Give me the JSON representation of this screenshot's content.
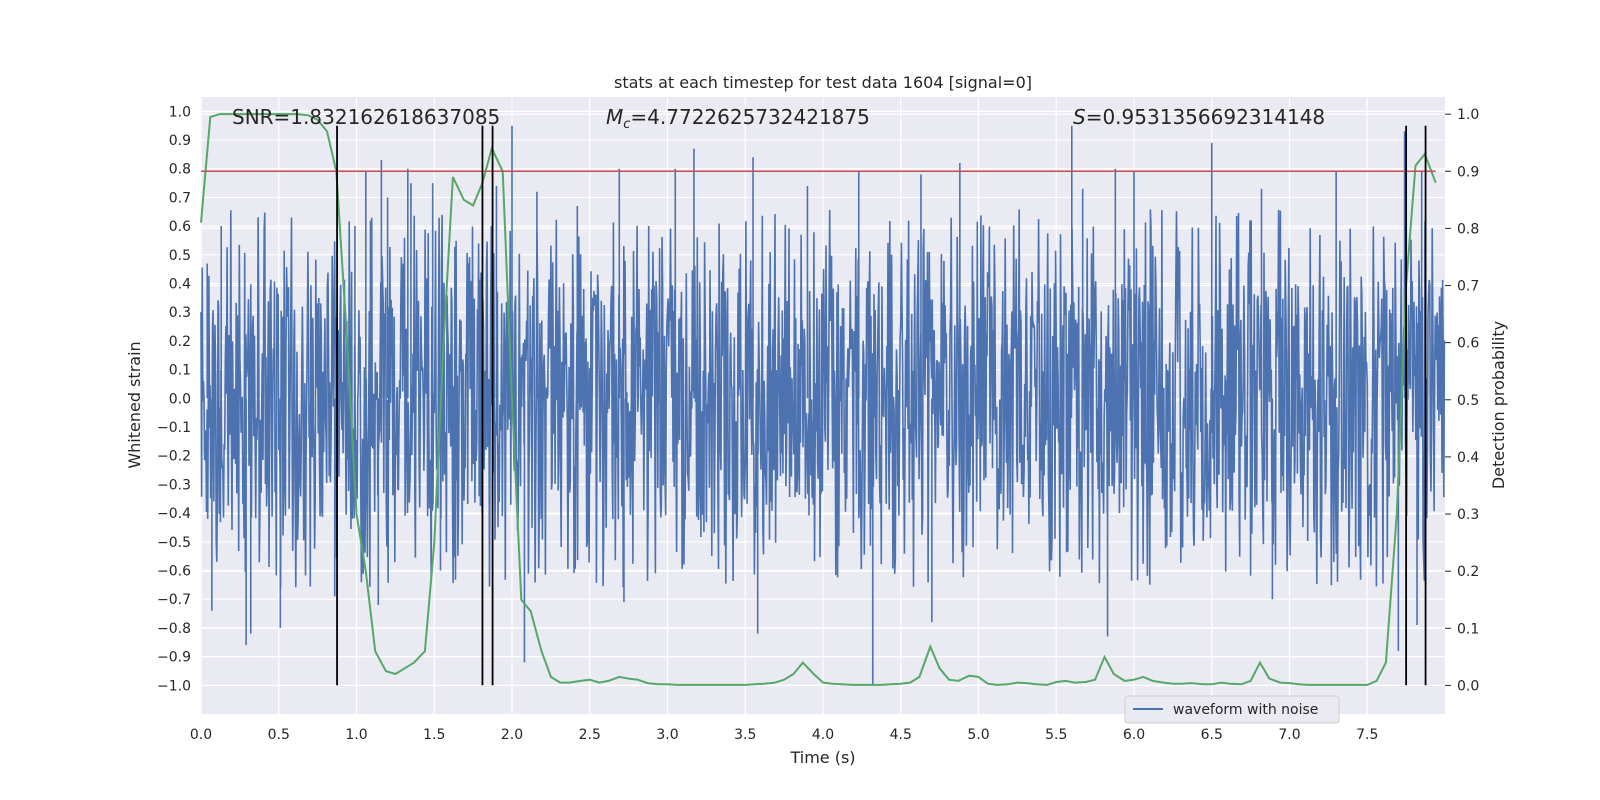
{
  "chart_data": {
    "type": "line",
    "title": "stats at each timestep for test data 1604 [signal=0]",
    "xlabel": "Time (s)",
    "ylabel": "Whitened strain",
    "y2label": "Detection probability",
    "xlim": [
      0,
      8
    ],
    "ylim": [
      -1.1,
      1.05
    ],
    "y2lim": [
      -0.05,
      1.03
    ],
    "x_ticks": [
      0.0,
      0.5,
      1.0,
      1.5,
      2.0,
      2.5,
      3.0,
      3.5,
      4.0,
      4.5,
      5.0,
      5.5,
      6.0,
      6.5,
      7.0,
      7.5
    ],
    "x_tick_labels": [
      "0.0",
      "0.5",
      "1.0",
      "1.5",
      "2.0",
      "2.5",
      "3.0",
      "3.5",
      "4.0",
      "4.5",
      "5.0",
      "5.5",
      "6.0",
      "6.5",
      "7.0",
      "7.5"
    ],
    "y_ticks": [
      1.0,
      0.9,
      0.8,
      0.7,
      0.6,
      0.5,
      0.4,
      0.3,
      0.2,
      0.1,
      0.0,
      -0.1,
      -0.2,
      -0.3,
      -0.4,
      -0.5,
      -0.6,
      -0.7,
      -0.8,
      -0.9,
      -1.0
    ],
    "y_tick_labels": [
      "1.0",
      "0.9",
      "0.8",
      "0.7",
      "0.6",
      "0.5",
      "0.4",
      "0.3",
      "0.2",
      "0.1",
      "0.0",
      "−0.1",
      "−0.2",
      "−0.3",
      "−0.4",
      "−0.5",
      "−0.6",
      "−0.7",
      "−0.8",
      "−0.9",
      "−1.0"
    ],
    "y2_ticks": [
      1.0,
      0.9,
      0.8,
      0.7,
      0.6,
      0.5,
      0.4,
      0.3,
      0.2,
      0.1,
      0.0
    ],
    "y2_tick_labels": [
      "1.0",
      "0.9",
      "0.8",
      "0.7",
      "0.6",
      "0.5",
      "0.4",
      "0.3",
      "0.2",
      "0.1",
      "0.0"
    ],
    "annotations": {
      "snr": "SNR=1.832162618637085",
      "mc_prefix": "M",
      "mc_sub": "c",
      "mc_value": "=4.7722625732421875",
      "s_prefix": "S",
      "s_value": "=0.9531356692314148"
    },
    "threshold": 0.9,
    "vlines": [
      0.875,
      1.81,
      1.875,
      7.75,
      7.875
    ],
    "vlines_y_range": [
      -1.0,
      0.95
    ],
    "waveform": {
      "name": "waveform with noise",
      "samples_per_second": 256,
      "envelope_inner": 0.42,
      "spikes": [
        [
          0.04,
          0.47
        ],
        [
          0.07,
          -0.74
        ],
        [
          0.13,
          0.6
        ],
        [
          0.29,
          -0.86
        ],
        [
          0.32,
          -0.82
        ],
        [
          0.51,
          -0.8
        ],
        [
          0.86,
          -0.69
        ],
        [
          0.99,
          0.6
        ],
        [
          1.06,
          0.79
        ],
        [
          1.14,
          -0.72
        ],
        [
          1.16,
          0.83
        ],
        [
          1.2,
          0.7
        ],
        [
          1.33,
          0.8
        ],
        [
          1.35,
          0.75
        ],
        [
          1.49,
          0.75
        ],
        [
          1.54,
          -0.6
        ],
        [
          1.9,
          0.74
        ],
        [
          2.0,
          0.95
        ],
        [
          2.08,
          -0.92
        ],
        [
          2.16,
          0.72
        ],
        [
          2.42,
          0.67
        ],
        [
          2.69,
          0.8
        ],
        [
          2.72,
          -0.71
        ],
        [
          3.05,
          0.8
        ],
        [
          3.17,
          0.87
        ],
        [
          3.55,
          0.84
        ],
        [
          3.58,
          -0.82
        ],
        [
          3.9,
          0.74
        ],
        [
          4.23,
          0.79
        ],
        [
          4.32,
          -1.0
        ],
        [
          4.63,
          0.78
        ],
        [
          4.7,
          -0.78
        ],
        [
          4.88,
          0.82
        ],
        [
          5.6,
          0.95
        ],
        [
          5.67,
          0.73
        ],
        [
          5.83,
          -0.83
        ],
        [
          5.88,
          0.8
        ],
        [
          6.0,
          0.79
        ],
        [
          6.5,
          0.89
        ],
        [
          6.82,
          0.73
        ],
        [
          6.89,
          -0.7
        ],
        [
          7.3,
          0.79
        ],
        [
          7.7,
          -0.88
        ],
        [
          7.74,
          0.93
        ],
        [
          7.82,
          -0.79
        ],
        [
          7.85,
          0.79
        ]
      ]
    },
    "probability": {
      "name": "Detection probability",
      "x": [
        0.0,
        0.06,
        0.12,
        0.19,
        0.25,
        0.31,
        0.37,
        0.44,
        0.5,
        0.56,
        0.62,
        0.69,
        0.75,
        0.81,
        0.87,
        0.94,
        1.0,
        1.06,
        1.12,
        1.19,
        1.25,
        1.31,
        1.37,
        1.44,
        1.5,
        1.56,
        1.62,
        1.69,
        1.75,
        1.81,
        1.87,
        1.94,
        2.0,
        2.06,
        2.12,
        2.19,
        2.25,
        2.31,
        2.37,
        2.44,
        2.5,
        2.56,
        2.62,
        2.69,
        2.75,
        2.81,
        2.87,
        2.94,
        3.0,
        3.06,
        3.12,
        3.19,
        3.25,
        3.31,
        3.37,
        3.44,
        3.5,
        3.56,
        3.62,
        3.69,
        3.75,
        3.81,
        3.87,
        3.94,
        4.0,
        4.06,
        4.12,
        4.19,
        4.25,
        4.31,
        4.37,
        4.44,
        4.5,
        4.56,
        4.62,
        4.69,
        4.75,
        4.81,
        4.87,
        4.94,
        5.0,
        5.06,
        5.12,
        5.19,
        5.25,
        5.31,
        5.37,
        5.44,
        5.5,
        5.56,
        5.62,
        5.69,
        5.75,
        5.81,
        5.87,
        5.94,
        6.0,
        6.06,
        6.12,
        6.19,
        6.25,
        6.31,
        6.37,
        6.44,
        6.5,
        6.56,
        6.62,
        6.69,
        6.75,
        6.81,
        6.87,
        6.94,
        7.0,
        7.06,
        7.12,
        7.19,
        7.25,
        7.31,
        7.37,
        7.44,
        7.5,
        7.56,
        7.62,
        7.69,
        7.75,
        7.81,
        7.87,
        7.94
      ],
      "y": [
        0.81,
        0.995,
        1.0,
        1.0,
        1.0,
        1.0,
        1.0,
        1.0,
        1.0,
        1.0,
        1.0,
        0.998,
        0.99,
        0.97,
        0.9,
        0.6,
        0.3,
        0.2,
        0.06,
        0.025,
        0.02,
        0.03,
        0.04,
        0.06,
        0.25,
        0.6,
        0.89,
        0.85,
        0.84,
        0.88,
        0.94,
        0.9,
        0.5,
        0.15,
        0.13,
        0.06,
        0.015,
        0.005,
        0.005,
        0.008,
        0.01,
        0.005,
        0.008,
        0.015,
        0.012,
        0.01,
        0.004,
        0.002,
        0.002,
        0.001,
        0.001,
        0.001,
        0.001,
        0.001,
        0.001,
        0.001,
        0.001,
        0.002,
        0.003,
        0.005,
        0.01,
        0.02,
        0.04,
        0.02,
        0.005,
        0.003,
        0.002,
        0.001,
        0.001,
        0.001,
        0.001,
        0.002,
        0.003,
        0.005,
        0.015,
        0.068,
        0.03,
        0.01,
        0.008,
        0.017,
        0.015,
        0.003,
        0.001,
        0.002,
        0.005,
        0.004,
        0.002,
        0.001,
        0.006,
        0.008,
        0.005,
        0.006,
        0.01,
        0.05,
        0.02,
        0.008,
        0.01,
        0.015,
        0.008,
        0.005,
        0.003,
        0.003,
        0.004,
        0.002,
        0.002,
        0.005,
        0.003,
        0.002,
        0.008,
        0.04,
        0.012,
        0.005,
        0.004,
        0.002,
        0.001,
        0.001,
        0.001,
        0.001,
        0.001,
        0.001,
        0.001,
        0.008,
        0.04,
        0.3,
        0.7,
        0.91,
        0.93,
        0.88
      ]
    },
    "legend": {
      "label": "waveform with noise",
      "loc": "lower-right"
    },
    "colors": {
      "waveform": "#4c72b0",
      "probability": "#55a868",
      "threshold": "#c44e52",
      "vline": "#000000",
      "background": "#eaeaf2",
      "grid": "#ffffff"
    }
  }
}
